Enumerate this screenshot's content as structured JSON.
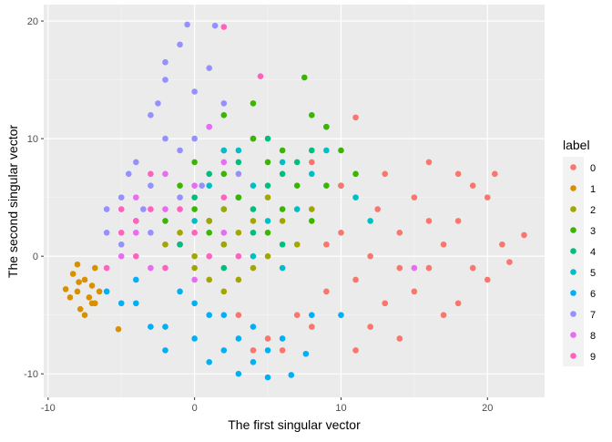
{
  "chart_data": {
    "type": "scatter",
    "title": "",
    "xlabel": "The first singular vector",
    "ylabel": "The second singular vector",
    "xlim": [
      -10.3,
      23.9
    ],
    "ylim": [
      -12.0,
      21.4
    ],
    "xticks": [
      -10,
      0,
      10,
      20
    ],
    "yticks": [
      -10,
      0,
      10,
      20
    ],
    "grid": true,
    "legend": {
      "title": "label",
      "placement": "right"
    },
    "series": [
      {
        "name": "0",
        "color": "#F8766D",
        "points": [
          [
            12,
            0
          ],
          [
            14,
            2
          ],
          [
            16,
            -1
          ],
          [
            18,
            3
          ],
          [
            20,
            -2
          ],
          [
            15,
            5
          ],
          [
            13,
            -4
          ],
          [
            17,
            -5
          ],
          [
            19,
            6
          ],
          [
            21,
            1
          ],
          [
            22.5,
            1.8
          ],
          [
            11,
            11.8
          ],
          [
            10,
            6
          ],
          [
            9,
            -3
          ],
          [
            8,
            -6
          ],
          [
            7,
            -5
          ],
          [
            6,
            -8
          ],
          [
            14,
            -7
          ],
          [
            16,
            8
          ],
          [
            18,
            7
          ],
          [
            20,
            5
          ],
          [
            21.5,
            -0.5
          ],
          [
            12.5,
            4
          ],
          [
            15,
            -3
          ],
          [
            17,
            1
          ],
          [
            19,
            -1
          ],
          [
            11,
            -2
          ],
          [
            13,
            7
          ],
          [
            16,
            3
          ],
          [
            18,
            -4
          ],
          [
            10,
            2
          ],
          [
            14,
            -1
          ],
          [
            9,
            1
          ],
          [
            12,
            -6
          ],
          [
            20.5,
            7
          ],
          [
            5,
            -7
          ],
          [
            4,
            -8
          ],
          [
            3,
            -5
          ],
          [
            8,
            8
          ],
          [
            11,
            -8
          ]
        ]
      },
      {
        "name": "1",
        "color": "#D89000",
        "points": [
          [
            -8.8,
            -2.8
          ],
          [
            -8,
            -3
          ],
          [
            -7.5,
            -2
          ],
          [
            -7,
            -4
          ],
          [
            -8.3,
            -1.5
          ],
          [
            -7.2,
            -3.5
          ],
          [
            -6.8,
            -1
          ],
          [
            -8.5,
            -3.5
          ],
          [
            -7.8,
            -4.5
          ],
          [
            -7,
            -2.5
          ],
          [
            -6.5,
            -3
          ],
          [
            -8,
            -0.7
          ],
          [
            -7.5,
            -5
          ],
          [
            -6.8,
            -4
          ],
          [
            -5.2,
            -6.2
          ],
          [
            -7.9,
            -2.2
          ]
        ]
      },
      {
        "name": "2",
        "color": "#A3A500",
        "points": [
          [
            0,
            0
          ],
          [
            2,
            1
          ],
          [
            4,
            3
          ],
          [
            1,
            -2
          ],
          [
            3,
            2
          ],
          [
            5,
            0
          ],
          [
            -1,
            2
          ],
          [
            2,
            4
          ],
          [
            6,
            3
          ],
          [
            0,
            -1
          ],
          [
            4,
            -1
          ],
          [
            7,
            1
          ],
          [
            1,
            3
          ],
          [
            3,
            -2
          ],
          [
            -2,
            1
          ],
          [
            5,
            5
          ],
          [
            8,
            4
          ],
          [
            2,
            -3
          ]
        ]
      },
      {
        "name": "3",
        "color": "#39B600",
        "points": [
          [
            0,
            4
          ],
          [
            2,
            7
          ],
          [
            4,
            10
          ],
          [
            6,
            9
          ],
          [
            8,
            12
          ],
          [
            7.5,
            15.2
          ],
          [
            9,
            11
          ],
          [
            10,
            9
          ],
          [
            3,
            5
          ],
          [
            5,
            8
          ],
          [
            1,
            2
          ],
          [
            -1,
            6
          ],
          [
            6,
            4
          ],
          [
            8,
            3
          ],
          [
            11,
            7
          ],
          [
            4,
            13
          ],
          [
            2,
            12
          ],
          [
            7,
            6
          ],
          [
            5,
            2
          ],
          [
            0,
            8
          ],
          [
            -2,
            3
          ],
          [
            9,
            6
          ]
        ]
      },
      {
        "name": "4",
        "color": "#00BF7D",
        "points": [
          [
            1,
            3
          ],
          [
            3,
            5
          ],
          [
            5,
            6
          ],
          [
            7,
            8
          ],
          [
            2,
            1
          ],
          [
            4,
            2
          ],
          [
            6,
            1
          ],
          [
            8,
            9
          ],
          [
            0,
            5
          ],
          [
            3,
            8
          ],
          [
            5,
            10
          ],
          [
            -1,
            1
          ],
          [
            2,
            -1
          ],
          [
            4,
            4
          ],
          [
            6,
            7
          ],
          [
            9,
            11
          ],
          [
            1,
            7
          ]
        ]
      },
      {
        "name": "5",
        "color": "#00BFC4",
        "points": [
          [
            2,
            4
          ],
          [
            4,
            6
          ],
          [
            6,
            8
          ],
          [
            8,
            7
          ],
          [
            10,
            6
          ],
          [
            3,
            9
          ],
          [
            5,
            3
          ],
          [
            7,
            4
          ],
          [
            1,
            6
          ],
          [
            9,
            9
          ],
          [
            11,
            5
          ],
          [
            0,
            3
          ],
          [
            4,
            0
          ],
          [
            6,
            -1
          ],
          [
            12,
            3
          ],
          [
            2,
            9
          ]
        ]
      },
      {
        "name": "6",
        "color": "#00B0F6",
        "points": [
          [
            -4,
            -4
          ],
          [
            -2,
            -6
          ],
          [
            0,
            -7
          ],
          [
            2,
            -8
          ],
          [
            4,
            -9
          ],
          [
            5,
            -10.3
          ],
          [
            6.6,
            -10.1
          ],
          [
            3,
            -10
          ],
          [
            1,
            -5
          ],
          [
            -1,
            -3
          ],
          [
            -3,
            -6
          ],
          [
            -5,
            -4
          ],
          [
            0,
            -4
          ],
          [
            2,
            -5
          ],
          [
            4,
            -6
          ],
          [
            6,
            -7
          ],
          [
            8,
            -5
          ],
          [
            7.6,
            -8.3
          ],
          [
            10,
            -5
          ],
          [
            -2,
            -8
          ],
          [
            1,
            -9
          ],
          [
            3,
            -7
          ],
          [
            5,
            -8
          ],
          [
            -4,
            -2
          ],
          [
            -6,
            -3
          ]
        ]
      },
      {
        "name": "7",
        "color": "#9590FF",
        "points": [
          [
            -4,
            8
          ],
          [
            -3,
            12
          ],
          [
            -2,
            15
          ],
          [
            -1,
            18
          ],
          [
            -0.5,
            19.7
          ],
          [
            1.4,
            19.6
          ],
          [
            -2,
            16.5
          ],
          [
            0,
            14
          ],
          [
            1,
            11
          ],
          [
            2,
            13
          ],
          [
            -5,
            5
          ],
          [
            -6,
            2
          ],
          [
            -4,
            3
          ],
          [
            -3,
            6
          ],
          [
            -1,
            9
          ],
          [
            0,
            10
          ],
          [
            -2,
            10
          ],
          [
            2,
            9
          ],
          [
            3,
            7
          ],
          [
            -5,
            1
          ],
          [
            -3,
            2
          ],
          [
            -1,
            5
          ],
          [
            1,
            16
          ],
          [
            -6,
            4
          ],
          [
            -4.5,
            7
          ],
          [
            -2.5,
            13
          ],
          [
            0.5,
            6
          ],
          [
            -3.5,
            4
          ]
        ]
      },
      {
        "name": "8",
        "color": "#E76BF3",
        "points": [
          [
            -4,
            2
          ],
          [
            -2,
            4
          ],
          [
            0,
            6
          ],
          [
            2,
            8
          ],
          [
            -3,
            -1
          ],
          [
            -1,
            1
          ],
          [
            1,
            3
          ],
          [
            3,
            5
          ],
          [
            -5,
            0
          ],
          [
            0,
            -2
          ],
          [
            4,
            10
          ],
          [
            -2,
            7
          ],
          [
            2,
            2
          ],
          [
            15,
            -1
          ],
          [
            1,
            11
          ],
          [
            -4,
            5
          ]
        ]
      },
      {
        "name": "9",
        "color": "#FF62BC",
        "points": [
          [
            -5,
            2
          ],
          [
            -3,
            4
          ],
          [
            -1,
            1
          ],
          [
            1,
            3
          ],
          [
            -4,
            0
          ],
          [
            -2,
            -1
          ],
          [
            0,
            2
          ],
          [
            2,
            5
          ],
          [
            -6,
            -1
          ],
          [
            -5,
            4
          ],
          [
            3,
            0
          ],
          [
            4.5,
            15.3
          ],
          [
            -3,
            7
          ],
          [
            -1,
            4
          ],
          [
            1,
            0
          ],
          [
            2,
            19.5
          ],
          [
            -4,
            3
          ]
        ]
      }
    ]
  }
}
